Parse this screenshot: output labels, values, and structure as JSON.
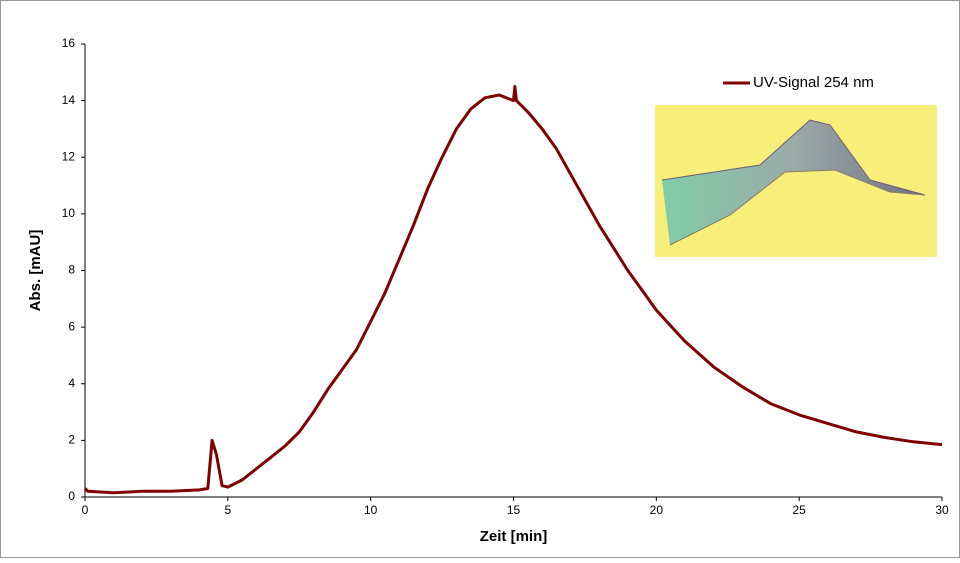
{
  "chart_data": {
    "type": "line",
    "x_label": "Zeit [min]",
    "y_label": "Abs. [mAU]",
    "x": [
      0,
      0.1,
      1,
      2,
      3,
      4,
      4.3,
      4.45,
      4.6,
      4.8,
      5,
      5.5,
      6,
      6.5,
      7,
      7.5,
      8,
      8.5,
      9,
      9.5,
      10,
      10.5,
      11,
      11.5,
      12,
      12.5,
      13,
      13.5,
      14,
      14.5,
      15,
      15.05,
      15.1,
      15.5,
      16,
      16.5,
      17,
      17.5,
      18,
      18.5,
      19,
      19.5,
      20,
      21,
      22,
      23,
      24,
      25,
      26,
      27,
      28,
      29,
      30
    ],
    "series": [
      {
        "name": "UV-Signal 254 nm",
        "color": "#800000",
        "values": [
          0.3,
          0.2,
          0.15,
          0.2,
          0.2,
          0.25,
          0.3,
          2.0,
          1.5,
          0.4,
          0.35,
          0.6,
          1.0,
          1.4,
          1.8,
          2.3,
          3.0,
          3.8,
          4.5,
          5.2,
          6.2,
          7.2,
          8.4,
          9.6,
          10.9,
          12.0,
          13.0,
          13.7,
          14.1,
          14.2,
          14.0,
          14.5,
          14.0,
          13.6,
          13.0,
          12.3,
          11.4,
          10.5,
          9.6,
          8.8,
          8.0,
          7.3,
          6.6,
          5.5,
          4.6,
          3.9,
          3.3,
          2.9,
          2.6,
          2.3,
          2.1,
          1.95,
          1.85
        ]
      }
    ],
    "xlim": [
      0,
      30
    ],
    "xticks": [
      0,
      5,
      10,
      15,
      20,
      25,
      30
    ],
    "ylim": [
      0,
      16
    ],
    "yticks": [
      0,
      2,
      4,
      6,
      8,
      10,
      12,
      14,
      16
    ],
    "grid": false,
    "legend": "upper right"
  }
}
